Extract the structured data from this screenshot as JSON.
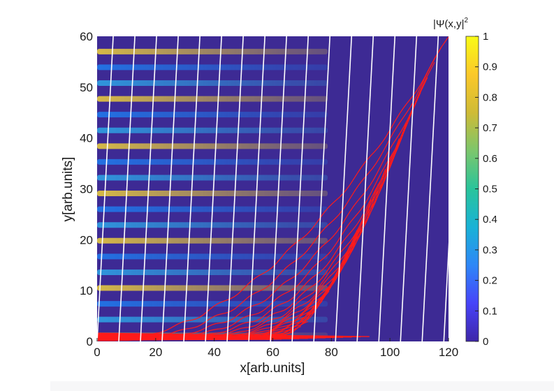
{
  "chart_data": {
    "type": "heatmap",
    "xlabel": "x[arb.units]",
    "ylabel": "y[arb.units]",
    "xlim": [
      0,
      120
    ],
    "ylim": [
      0,
      60
    ],
    "x_ticks": [
      "0",
      "20",
      "40",
      "60",
      "80",
      "100",
      "120"
    ],
    "y_ticks": [
      "0",
      "10",
      "20",
      "30",
      "40",
      "50",
      "60"
    ],
    "colorbar": {
      "title_prefix": "|Ψ(x,y|",
      "title_exp": "2",
      "range": [
        0,
        1
      ],
      "ticks": [
        "0",
        "0.1",
        "0.2",
        "0.3",
        "0.4",
        "0.5",
        "0.6",
        "0.7",
        "0.8",
        "0.9",
        "1"
      ],
      "colormap": [
        "#3e26a8",
        "#4743f9",
        "#2e87f7",
        "#19b2d6",
        "#29c49b",
        "#7cc66c",
        "#cfbb36",
        "#fbc82a",
        "#f9fb15"
      ]
    },
    "heatmap_background": "#3d2a94",
    "density_description_values": {
      "band_spacing_y": 3.1,
      "peak_intensity": 0.85
    },
    "white_lines_bottom_x": [
      0,
      7.4,
      14.8,
      22.2,
      29.6,
      37,
      44.4,
      51.8,
      59.2,
      66.6,
      74,
      81.4,
      88.8,
      96.2,
      103.6,
      111,
      118.4
    ],
    "white_line_slope_dx_per_60y": 5.5,
    "red_curve_end_y": [
      60,
      58,
      55,
      52,
      49,
      46,
      43,
      40,
      37,
      34,
      31,
      28,
      25,
      22,
      19,
      16,
      13,
      10,
      8,
      6,
      4,
      3,
      2
    ],
    "line_colors": {
      "trajectories": "#ff1a1a",
      "wavefronts": "#ffffff"
    }
  }
}
